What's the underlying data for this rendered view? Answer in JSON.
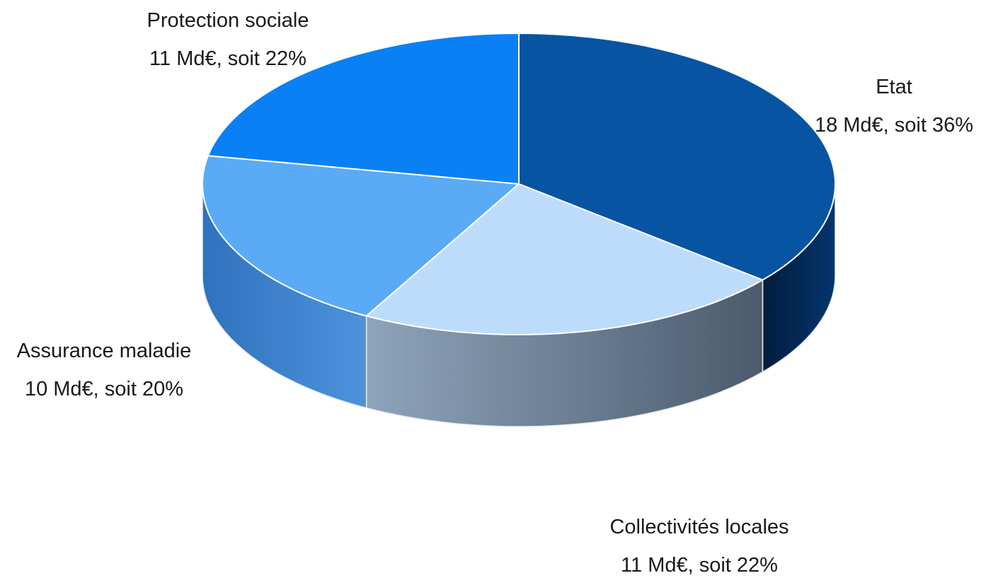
{
  "chart_data": {
    "type": "pie",
    "style": "3d",
    "legend": "none",
    "slices": [
      {
        "label": "Etat",
        "value": 18,
        "percent": 36,
        "text": "18 Md€, soit  36%",
        "color": "#0754a3"
      },
      {
        "label": "Collectivités locales",
        "value": 11,
        "percent": 22,
        "text": "11 Md€, soit 22%",
        "color": "#bddcfb"
      },
      {
        "label": "Assurance maladie",
        "value": 10,
        "percent": 20,
        "text": "10 Md€, soit 20%",
        "color": "#5aaaf5"
      },
      {
        "label": "Protection sociale",
        "value": 11,
        "percent": 22,
        "text": "11 Md€, soit  22%",
        "color": "#0a80f5"
      }
    ],
    "side_colors": [
      "#032a57",
      "#5d6f85",
      "#3f85cf",
      "#0660c0"
    ]
  }
}
